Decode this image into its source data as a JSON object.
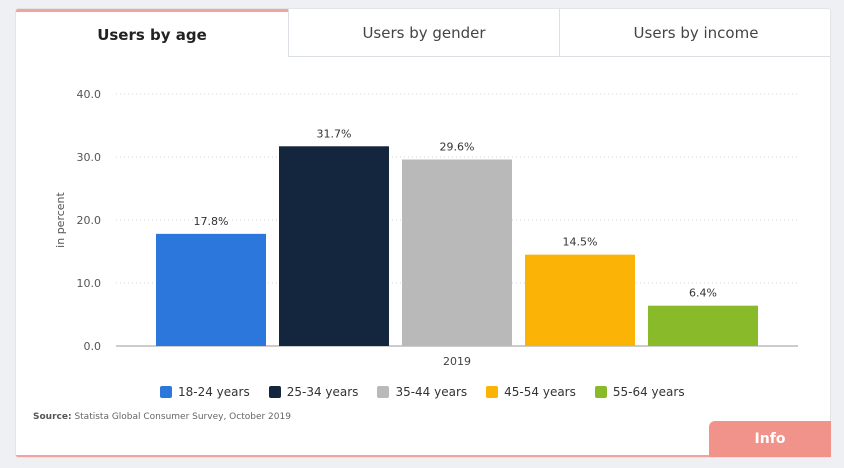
{
  "tabs": [
    {
      "label": "Users by age",
      "active": true
    },
    {
      "label": "Users by gender",
      "active": false
    },
    {
      "label": "Users by income",
      "active": false
    }
  ],
  "source": {
    "prefix": "Source:",
    "text": "Statista Global Consumer Survey, October 2019"
  },
  "info_button": "Info",
  "chart_data": {
    "type": "bar",
    "categories": [
      "2019"
    ],
    "ylabel": "in percent",
    "ylim": [
      0,
      40
    ],
    "yticks": [
      "0.0",
      "10.0",
      "20.0",
      "30.0",
      "40.0"
    ],
    "grid": true,
    "legend_position": "bottom",
    "series": [
      {
        "name": "18-24 years",
        "values": [
          17.8
        ],
        "label": "17.8%",
        "color": "#2c77db"
      },
      {
        "name": "25-34 years",
        "values": [
          31.7
        ],
        "label": "31.7%",
        "color": "#13263e"
      },
      {
        "name": "35-44 years",
        "values": [
          29.6
        ],
        "label": "29.6%",
        "color": "#b9b9b9"
      },
      {
        "name": "45-54 years",
        "values": [
          14.5
        ],
        "label": "14.5%",
        "color": "#fbb305"
      },
      {
        "name": "55-64 years",
        "values": [
          6.4
        ],
        "label": "6.4%",
        "color": "#89ba29"
      }
    ]
  }
}
